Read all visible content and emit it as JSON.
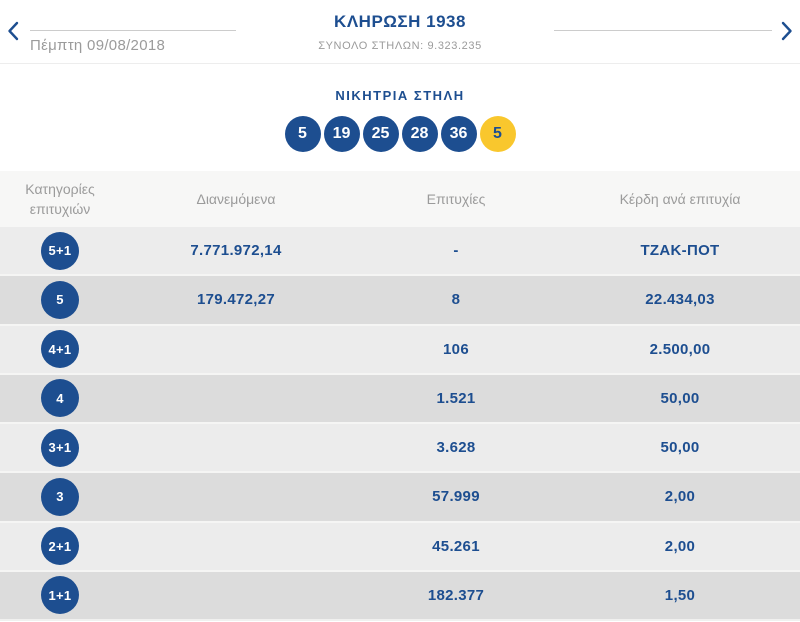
{
  "colors": {
    "blue": "#1d4e90",
    "yellow": "#f9c72d",
    "gray_text": "#9b9b9b",
    "line": "#cccccc",
    "header_bg": "#f7f7f6",
    "row_light": "#ececec",
    "row_dark": "#dcdcdc"
  },
  "nav": {
    "date": "Πέμπτη 09/08/2018",
    "title": "ΚΛΗΡΩΣΗ 1938",
    "subtitle": "ΣΥΝΟΛΟ ΣΤΗΛΩΝ: 9.323.235"
  },
  "icons": {
    "prev": "chevron-left",
    "next": "chevron-right"
  },
  "winning_column": {
    "title": "ΝΙΚΗΤΡΙΑ ΣΤΗΛΗ",
    "numbers": [
      "5",
      "19",
      "25",
      "28",
      "36"
    ],
    "joker": "5"
  },
  "results_table": {
    "headers": [
      "Κατηγορίες επιτυχιών",
      "Διανεμόμενα",
      "Επιτυχίες",
      "Κέρδη ανά επιτυχία"
    ],
    "rows": [
      {
        "category": "5+1",
        "distributed": "7.771.972,14",
        "wins": "-",
        "prize": "ΤΖΑΚ-ΠΟΤ"
      },
      {
        "category": "5",
        "distributed": "179.472,27",
        "wins": "8",
        "prize": "22.434,03"
      },
      {
        "category": "4+1",
        "distributed": "",
        "wins": "106",
        "prize": "2.500,00"
      },
      {
        "category": "4",
        "distributed": "",
        "wins": "1.521",
        "prize": "50,00"
      },
      {
        "category": "3+1",
        "distributed": "",
        "wins": "3.628",
        "prize": "50,00"
      },
      {
        "category": "3",
        "distributed": "",
        "wins": "57.999",
        "prize": "2,00"
      },
      {
        "category": "2+1",
        "distributed": "",
        "wins": "45.261",
        "prize": "2,00"
      },
      {
        "category": "1+1",
        "distributed": "",
        "wins": "182.377",
        "prize": "1,50"
      }
    ]
  }
}
